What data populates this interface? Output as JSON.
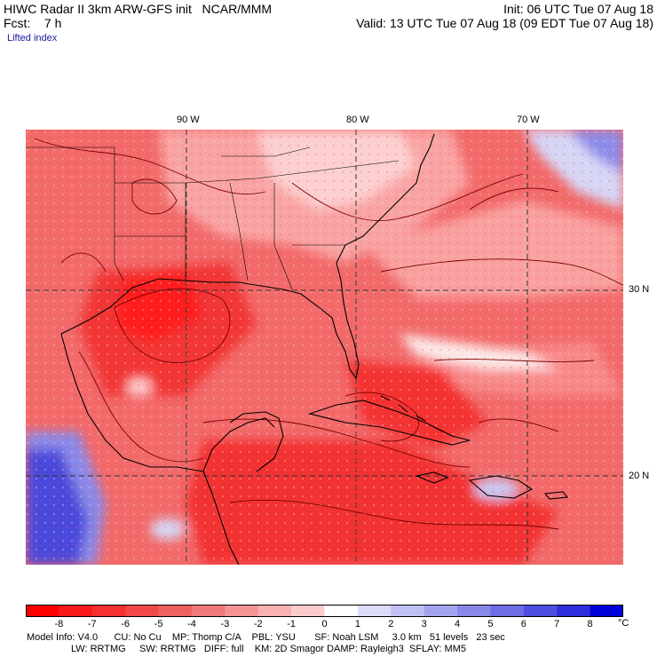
{
  "header": {
    "left_line1": "HIWC Radar II 3km ARW-GFS init   NCAR/MMM",
    "left_line2": "Fcst:    7 h",
    "field": "Lifted index",
    "right_line1": "Init: 06 UTC Tue 07 Aug 18",
    "right_line2": "Valid: 13 UTC Tue 07 Aug 18 (09 EDT Tue 07 Aug 18)"
  },
  "map": {
    "lon_labels": [
      "90 W",
      "80 W",
      "70 W"
    ],
    "lat_labels": [
      "30 N",
      "20 N"
    ],
    "colors": {
      "deep_red": "#ff1a1a",
      "red": "#f44a4a",
      "mid_red": "#f77070",
      "light_red": "#fba0a0",
      "pale": "#fcd2d2",
      "white": "#ffffff",
      "pale_blue": "#d6d6f7",
      "blue": "#6f6fe6",
      "deep_blue": "#3a3add",
      "contour": "#7a0000",
      "coast": "#000000"
    }
  },
  "colorbar": {
    "labels": [
      "-8",
      "-7",
      "-6",
      "-5",
      "-4",
      "-3",
      "-2",
      "-1",
      "0",
      "1",
      "2",
      "3",
      "4",
      "5",
      "6",
      "7",
      "8"
    ],
    "unit": "°C",
    "colors": [
      "#ff0000",
      "#f81a1a",
      "#f43030",
      "#f04848",
      "#ee6060",
      "#f07878",
      "#f49494",
      "#f8b0b0",
      "#fccccc",
      "#ffffff",
      "#dcdcf8",
      "#c0c0f4",
      "#a4a4ee",
      "#8888e8",
      "#6c6ce4",
      "#4e4ee0",
      "#2e2edc",
      "#0000d8"
    ]
  },
  "footer": {
    "line1": "Model Info: V4.0      CU: No Cu    MP: Thomp C/A    PBL: YSU       SF: Noah LSM     3.0 km   51 levels   23 sec",
    "line2": "LW: RRTMG     SW: RRTMG   DIFF: full    KM: 2D Smagor DAMP: Rayleigh3  SFLAY: MM5"
  }
}
